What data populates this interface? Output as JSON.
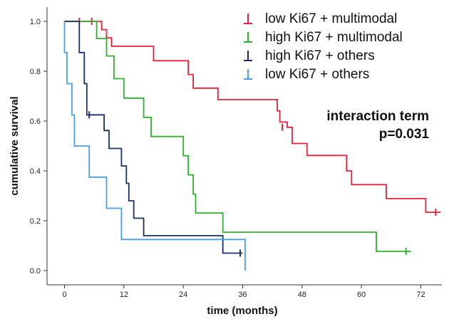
{
  "chart_data": {
    "type": "line",
    "step": true,
    "xlabel": "time (months)",
    "ylabel": "cumulative survival",
    "xlim": [
      -3,
      77
    ],
    "ylim": [
      0,
      1.0
    ],
    "xticks": [
      0,
      12,
      24,
      36,
      48,
      60,
      72
    ],
    "yticks": [
      0.0,
      0.2,
      0.4,
      0.6,
      0.8,
      1.0
    ],
    "ytick_labels": [
      "0.0",
      "0.2",
      "0.4",
      "0.6",
      "0.8",
      "1.0"
    ],
    "grid": false,
    "legend_position": "top-right",
    "annotation": [
      "interaction term",
      "p=0.031"
    ],
    "series": [
      {
        "name": "low Ki67 + multimodal",
        "color": "#e8203a",
        "points": [
          [
            0,
            1.0
          ],
          [
            7.5,
            1.0
          ],
          [
            7.5,
            0.967
          ],
          [
            8.5,
            0.967
          ],
          [
            8.5,
            0.934
          ],
          [
            9.5,
            0.934
          ],
          [
            9.5,
            0.9
          ],
          [
            18,
            0.9
          ],
          [
            18,
            0.842
          ],
          [
            25,
            0.842
          ],
          [
            25,
            0.787
          ],
          [
            26,
            0.787
          ],
          [
            26,
            0.732
          ],
          [
            31,
            0.732
          ],
          [
            31,
            0.686
          ],
          [
            43,
            0.686
          ],
          [
            43,
            0.641
          ],
          [
            43.5,
            0.641
          ],
          [
            43.5,
            0.596
          ],
          [
            45,
            0.596
          ],
          [
            45,
            0.575
          ],
          [
            46,
            0.575
          ],
          [
            46,
            0.51
          ],
          [
            49,
            0.51
          ],
          [
            49,
            0.462
          ],
          [
            57,
            0.462
          ],
          [
            57,
            0.4
          ],
          [
            58,
            0.4
          ],
          [
            58,
            0.345
          ],
          [
            65,
            0.345
          ],
          [
            65,
            0.289
          ],
          [
            73,
            0.289
          ],
          [
            73,
            0.234
          ],
          [
            76,
            0.234
          ]
        ],
        "censored": [
          [
            3,
            1.0
          ],
          [
            5.5,
            1.0
          ],
          [
            44,
            0.575
          ],
          [
            75,
            0.234
          ]
        ]
      },
      {
        "name": "high Ki67 + multimodal",
        "color": "#2db32d",
        "points": [
          [
            0,
            1.0
          ],
          [
            6.5,
            1.0
          ],
          [
            6.5,
            0.931
          ],
          [
            8.5,
            0.931
          ],
          [
            8.5,
            0.861
          ],
          [
            10,
            0.861
          ],
          [
            10,
            0.77
          ],
          [
            12,
            0.77
          ],
          [
            12,
            0.692
          ],
          [
            16,
            0.692
          ],
          [
            16,
            0.615
          ],
          [
            17.5,
            0.615
          ],
          [
            17.5,
            0.538
          ],
          [
            24,
            0.538
          ],
          [
            24,
            0.461
          ],
          [
            25,
            0.461
          ],
          [
            25,
            0.384
          ],
          [
            26,
            0.384
          ],
          [
            26,
            0.307
          ],
          [
            26.5,
            0.307
          ],
          [
            26.5,
            0.231
          ],
          [
            32,
            0.231
          ],
          [
            32,
            0.154
          ],
          [
            63,
            0.154
          ],
          [
            63,
            0.077
          ],
          [
            70,
            0.077
          ]
        ],
        "censored": [
          [
            69,
            0.077
          ]
        ]
      },
      {
        "name": "high Ki67 + others",
        "color": "#1a2e6a",
        "points": [
          [
            0,
            1.0
          ],
          [
            3,
            1.0
          ],
          [
            3,
            0.875
          ],
          [
            4,
            0.875
          ],
          [
            4,
            0.75
          ],
          [
            4.5,
            0.75
          ],
          [
            4.5,
            0.625
          ],
          [
            8,
            0.625
          ],
          [
            8,
            0.562
          ],
          [
            9,
            0.562
          ],
          [
            9,
            0.49
          ],
          [
            11.5,
            0.49
          ],
          [
            11.5,
            0.42
          ],
          [
            12.5,
            0.42
          ],
          [
            12.5,
            0.35
          ],
          [
            13,
            0.35
          ],
          [
            13,
            0.28
          ],
          [
            14,
            0.28
          ],
          [
            14,
            0.21
          ],
          [
            16,
            0.21
          ],
          [
            16,
            0.14
          ],
          [
            32,
            0.14
          ],
          [
            32,
            0.07
          ],
          [
            36,
            0.07
          ]
        ],
        "censored": [
          [
            5,
            0.625
          ],
          [
            35.5,
            0.07
          ]
        ]
      },
      {
        "name": "low Ki67 + others",
        "color": "#4a9fe0",
        "points": [
          [
            0,
            1.0
          ],
          [
            0,
            0.875
          ],
          [
            0.5,
            0.875
          ],
          [
            0.5,
            0.75
          ],
          [
            1.5,
            0.75
          ],
          [
            1.5,
            0.625
          ],
          [
            2,
            0.625
          ],
          [
            2,
            0.5
          ],
          [
            5,
            0.5
          ],
          [
            5,
            0.375
          ],
          [
            8.5,
            0.375
          ],
          [
            8.5,
            0.25
          ],
          [
            11.5,
            0.25
          ],
          [
            11.5,
            0.125
          ],
          [
            36.5,
            0.125
          ],
          [
            36.5,
            0.0
          ]
        ],
        "censored": []
      }
    ]
  }
}
